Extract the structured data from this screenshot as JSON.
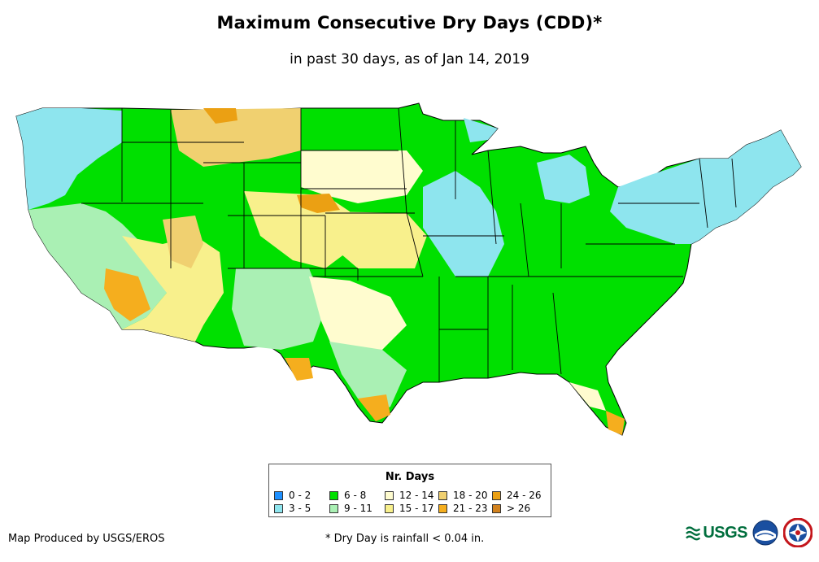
{
  "header": {
    "title": "Maximum Consecutive Dry Days (CDD)*",
    "subtitle": "in past 30 days, as of Jan 14, 2019"
  },
  "legend": {
    "title": "Nr. Days",
    "items": [
      {
        "label": "0 - 2",
        "color": "#1e90ff"
      },
      {
        "label": "3 - 5",
        "color": "#8ee5ee"
      },
      {
        "label": "6 - 8",
        "color": "#00e000"
      },
      {
        "label": "9 - 11",
        "color": "#aaf0b4"
      },
      {
        "label": "12 - 14",
        "color": "#fffccf"
      },
      {
        "label": "15 - 17",
        "color": "#f8f08c"
      },
      {
        "label": "18 - 20",
        "color": "#f0d070"
      },
      {
        "label": "21 - 23",
        "color": "#f5ae1e"
      },
      {
        "label": "24 - 26",
        "color": "#eba013"
      },
      {
        "label": "> 26",
        "color": "#d2821e"
      }
    ]
  },
  "footer": {
    "credit": "Map Produced by USGS/EROS",
    "note": "* Dry Day is rainfall < 0.04 in."
  },
  "logos": {
    "usgs_text": "USGS"
  }
}
